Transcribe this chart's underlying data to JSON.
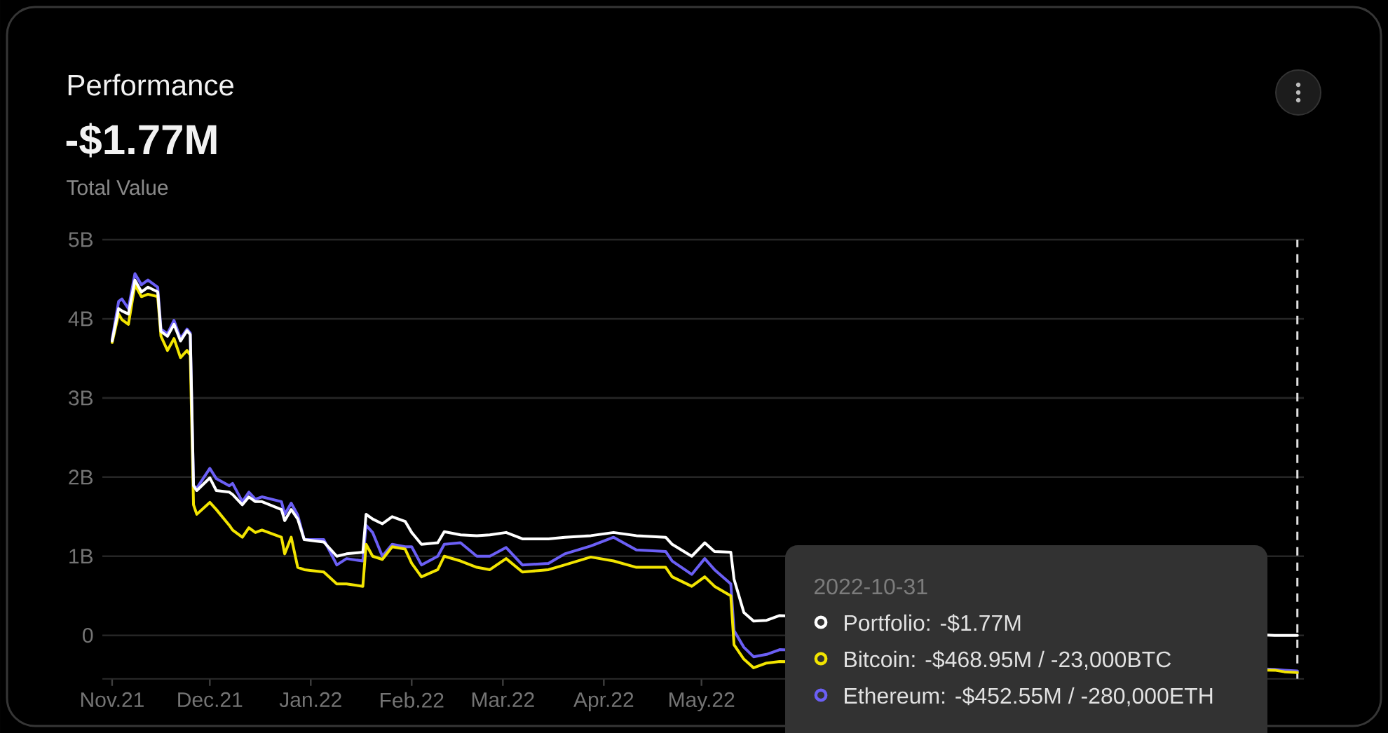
{
  "chart_data": {
    "type": "line",
    "title": "Performance",
    "subtitle": "-$1.77M",
    "annotations": [
      "Total Value",
      "2022-10-31",
      "Portfolio: -$1.77M",
      "Bitcoin: -$468.95M / -23,000BTC",
      "Ethereum: -$452.55M / -280,000ETH"
    ],
    "x": [
      "2021-11-01",
      "2021-11-03",
      "2021-11-04",
      "2021-11-06",
      "2021-11-08",
      "2021-11-10",
      "2021-11-12",
      "2021-11-15",
      "2021-11-16",
      "2021-11-18",
      "2021-11-20",
      "2021-11-22",
      "2021-11-24",
      "2021-11-25",
      "2021-11-26",
      "2021-11-27",
      "2021-12-01",
      "2021-12-03",
      "2021-12-07",
      "2021-12-08",
      "2021-12-11",
      "2021-12-13",
      "2021-12-15",
      "2021-12-17",
      "2021-12-23",
      "2021-12-24",
      "2021-12-26",
      "2021-12-28",
      "2021-12-30",
      "2022-01-05",
      "2022-01-09",
      "2022-01-12",
      "2022-01-17",
      "2022-01-18",
      "2022-01-20",
      "2022-01-23",
      "2022-01-26",
      "2022-01-30",
      "2022-02-01",
      "2022-02-04",
      "2022-02-09",
      "2022-02-11",
      "2022-02-16",
      "2022-02-21",
      "2022-02-25",
      "2022-03-02",
      "2022-03-07",
      "2022-03-15",
      "2022-03-20",
      "2022-03-28",
      "2022-04-04",
      "2022-04-11",
      "2022-04-20",
      "2022-04-22",
      "2022-04-28",
      "2022-05-02",
      "2022-05-05",
      "2022-05-10",
      "2022-05-11",
      "2022-05-14",
      "2022-05-17",
      "2022-05-21",
      "2022-05-25",
      "2022-10-24",
      "2022-10-27",
      "2022-10-31"
    ],
    "series": [
      {
        "color": "#ffffff",
        "values": [
          3.72,
          4.13,
          4.1,
          4.06,
          4.49,
          4.34,
          4.4,
          4.34,
          3.84,
          3.78,
          3.93,
          3.72,
          3.85,
          3.8,
          1.89,
          1.83,
          1.99,
          1.83,
          1.81,
          1.78,
          1.65,
          1.75,
          1.69,
          1.69,
          1.59,
          1.45,
          1.59,
          1.47,
          1.21,
          1.18,
          1.0,
          1.03,
          1.05,
          1.53,
          1.47,
          1.41,
          1.5,
          1.44,
          1.3,
          1.15,
          1.17,
          1.31,
          1.27,
          1.26,
          1.27,
          1.3,
          1.22,
          1.22,
          1.24,
          1.26,
          1.3,
          1.26,
          1.24,
          1.15,
          1.0,
          1.17,
          1.06,
          1.05,
          0.71,
          0.29,
          0.18,
          0.19,
          0.25,
          0,
          0,
          0
        ]
      },
      {
        "color": "#f2e400",
        "values": [
          3.7,
          4.06,
          3.99,
          3.93,
          4.43,
          4.28,
          4.31,
          4.28,
          3.78,
          3.6,
          3.75,
          3.51,
          3.6,
          3.54,
          1.65,
          1.53,
          1.68,
          1.59,
          1.39,
          1.33,
          1.24,
          1.36,
          1.3,
          1.33,
          1.24,
          1.03,
          1.24,
          0.86,
          0.83,
          0.8,
          0.65,
          0.65,
          0.62,
          1.15,
          1.0,
          0.96,
          1.12,
          1.09,
          0.91,
          0.74,
          0.83,
          1.0,
          0.94,
          0.86,
          0.83,
          0.97,
          0.8,
          0.83,
          0.89,
          0.99,
          0.94,
          0.86,
          0.86,
          0.74,
          0.62,
          0.74,
          0.62,
          0.5,
          -0.12,
          -0.3,
          -0.41,
          -0.35,
          -0.33,
          -0.44,
          -0.46,
          -0.47
        ]
      },
      {
        "color": "#6b5ff5",
        "values": [
          3.74,
          4.22,
          4.25,
          4.13,
          4.57,
          4.43,
          4.49,
          4.4,
          3.87,
          3.81,
          3.98,
          3.75,
          3.87,
          3.82,
          1.89,
          1.86,
          2.11,
          1.98,
          1.89,
          1.92,
          1.69,
          1.81,
          1.72,
          1.75,
          1.69,
          1.53,
          1.67,
          1.52,
          1.21,
          1.21,
          0.89,
          0.97,
          0.94,
          1.39,
          1.3,
          1.0,
          1.15,
          1.12,
          1.12,
          0.89,
          1.0,
          1.15,
          1.17,
          1.0,
          1.0,
          1.11,
          0.89,
          0.91,
          1.03,
          1.13,
          1.24,
          1.08,
          1.06,
          0.94,
          0.77,
          0.97,
          0.83,
          0.65,
          0.06,
          -0.15,
          -0.27,
          -0.24,
          -0.18,
          -0.43,
          -0.44,
          -0.45
        ]
      }
    ],
    "xlim": [
      "2021-10-29",
      "2022-11-02"
    ],
    "xticks": [
      {
        "value": "2021-11-01",
        "label": "Nov.21"
      },
      {
        "value": "2021-12-01",
        "label": "Dec.21"
      },
      {
        "value": "2022-01-01",
        "label": "Jan.22"
      },
      {
        "value": "2022-02-01",
        "label": "Feb.22"
      },
      {
        "value": "2022-03-01",
        "label": "Mar.22"
      },
      {
        "value": "2022-04-01",
        "label": "Apr.22"
      },
      {
        "value": "2022-05-01",
        "label": "May.22"
      }
    ],
    "ylim": [
      -0.55,
      5
    ],
    "yticks": [
      0,
      {
        "value": 1,
        "label": "1B"
      },
      {
        "value": 2,
        "label": "2B"
      },
      {
        "value": 3,
        "label": "3B"
      },
      {
        "value": 4,
        "label": "4B"
      },
      {
        "value": 5,
        "label": "5B"
      }
    ],
    "grid": "y",
    "ref_lines": [
      {
        "axis": "x",
        "value": "2022-10-31",
        "color": "#e0e0e0",
        "line_style": "dashed"
      }
    ]
  }
}
